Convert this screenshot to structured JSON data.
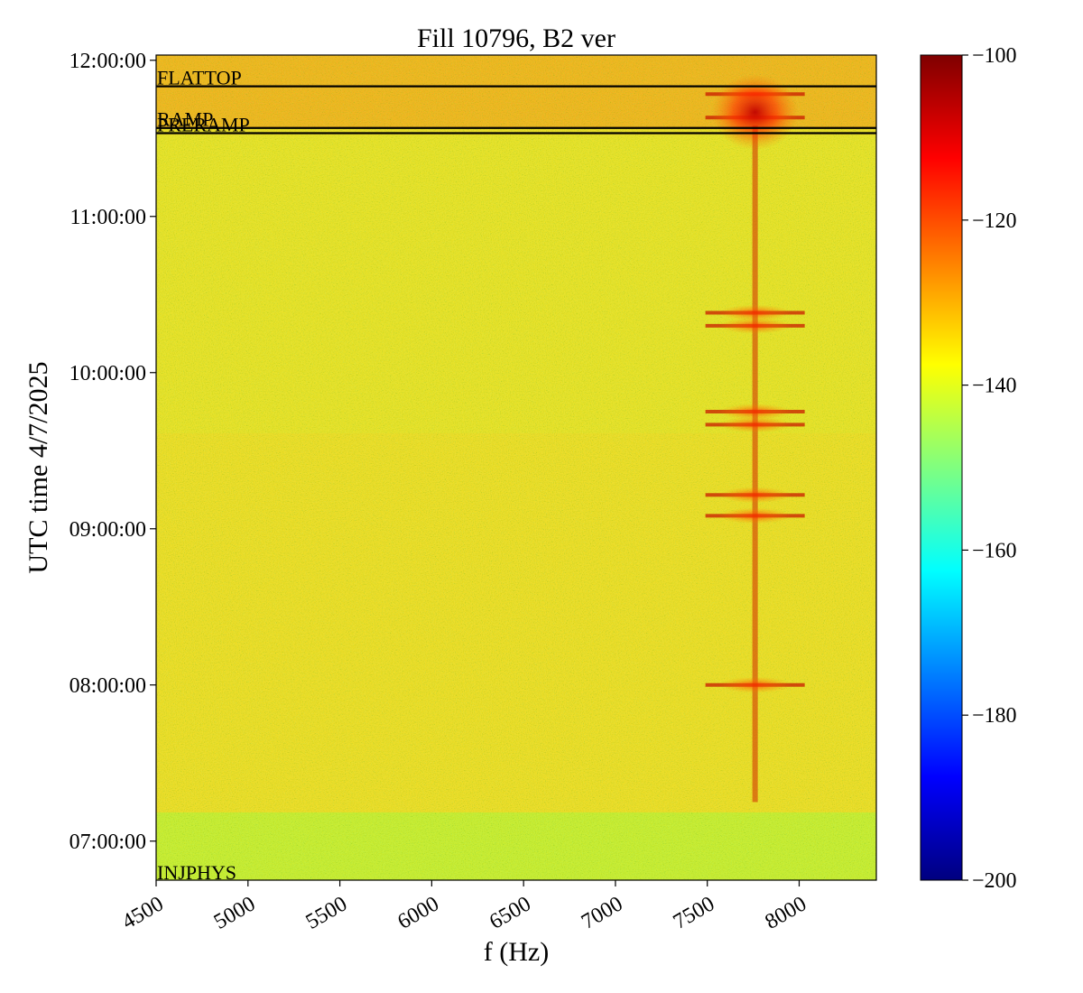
{
  "chart_data": {
    "type": "heatmap",
    "title": "Fill 10796, B2 ver",
    "xlabel": "f (Hz)",
    "ylabel": "UTC time 4/7/2025",
    "xlim": [
      4500,
      8420
    ],
    "ylim": [
      "06:45:00",
      "12:02:00"
    ],
    "x_ticks": [
      "4500",
      "5000",
      "5500",
      "6000",
      "6500",
      "7000",
      "7500",
      "8000"
    ],
    "y_ticks": [
      "07:00:00",
      "08:00:00",
      "09:00:00",
      "10:00:00",
      "11:00:00",
      "12:00:00"
    ],
    "colorbar": {
      "colormap": "jet",
      "range": [
        -200,
        -100
      ],
      "ticks": [
        "−200",
        "−180",
        "−160",
        "−140",
        "−120",
        "−100"
      ]
    },
    "background_level_range": [
      -140,
      -125
    ],
    "phase_markers": [
      {
        "label": "FLATTOP",
        "time": "11:50:00"
      },
      {
        "label": "RAMP",
        "time": "11:34:00"
      },
      {
        "label": "PRERAMP",
        "time": "11:32:00"
      },
      {
        "label": "INJPHYS",
        "time": "06:45:00"
      }
    ],
    "features": [
      {
        "f": 7760,
        "t_start": "07:15:00",
        "t_end": "11:35:00",
        "note": "vertical line"
      },
      {
        "f": 7760,
        "t": "08:00:00"
      },
      {
        "f": 7760,
        "t": "09:05:00"
      },
      {
        "f": 7760,
        "t": "09:13:00"
      },
      {
        "f": 7760,
        "t": "09:40:00"
      },
      {
        "f": 7760,
        "t": "09:45:00"
      },
      {
        "f": 7760,
        "t": "10:18:00"
      },
      {
        "f": 7760,
        "t": "10:23:00"
      },
      {
        "f": 7760,
        "t": "11:38:00"
      },
      {
        "f": 7760,
        "t": "11:47:00"
      }
    ]
  }
}
